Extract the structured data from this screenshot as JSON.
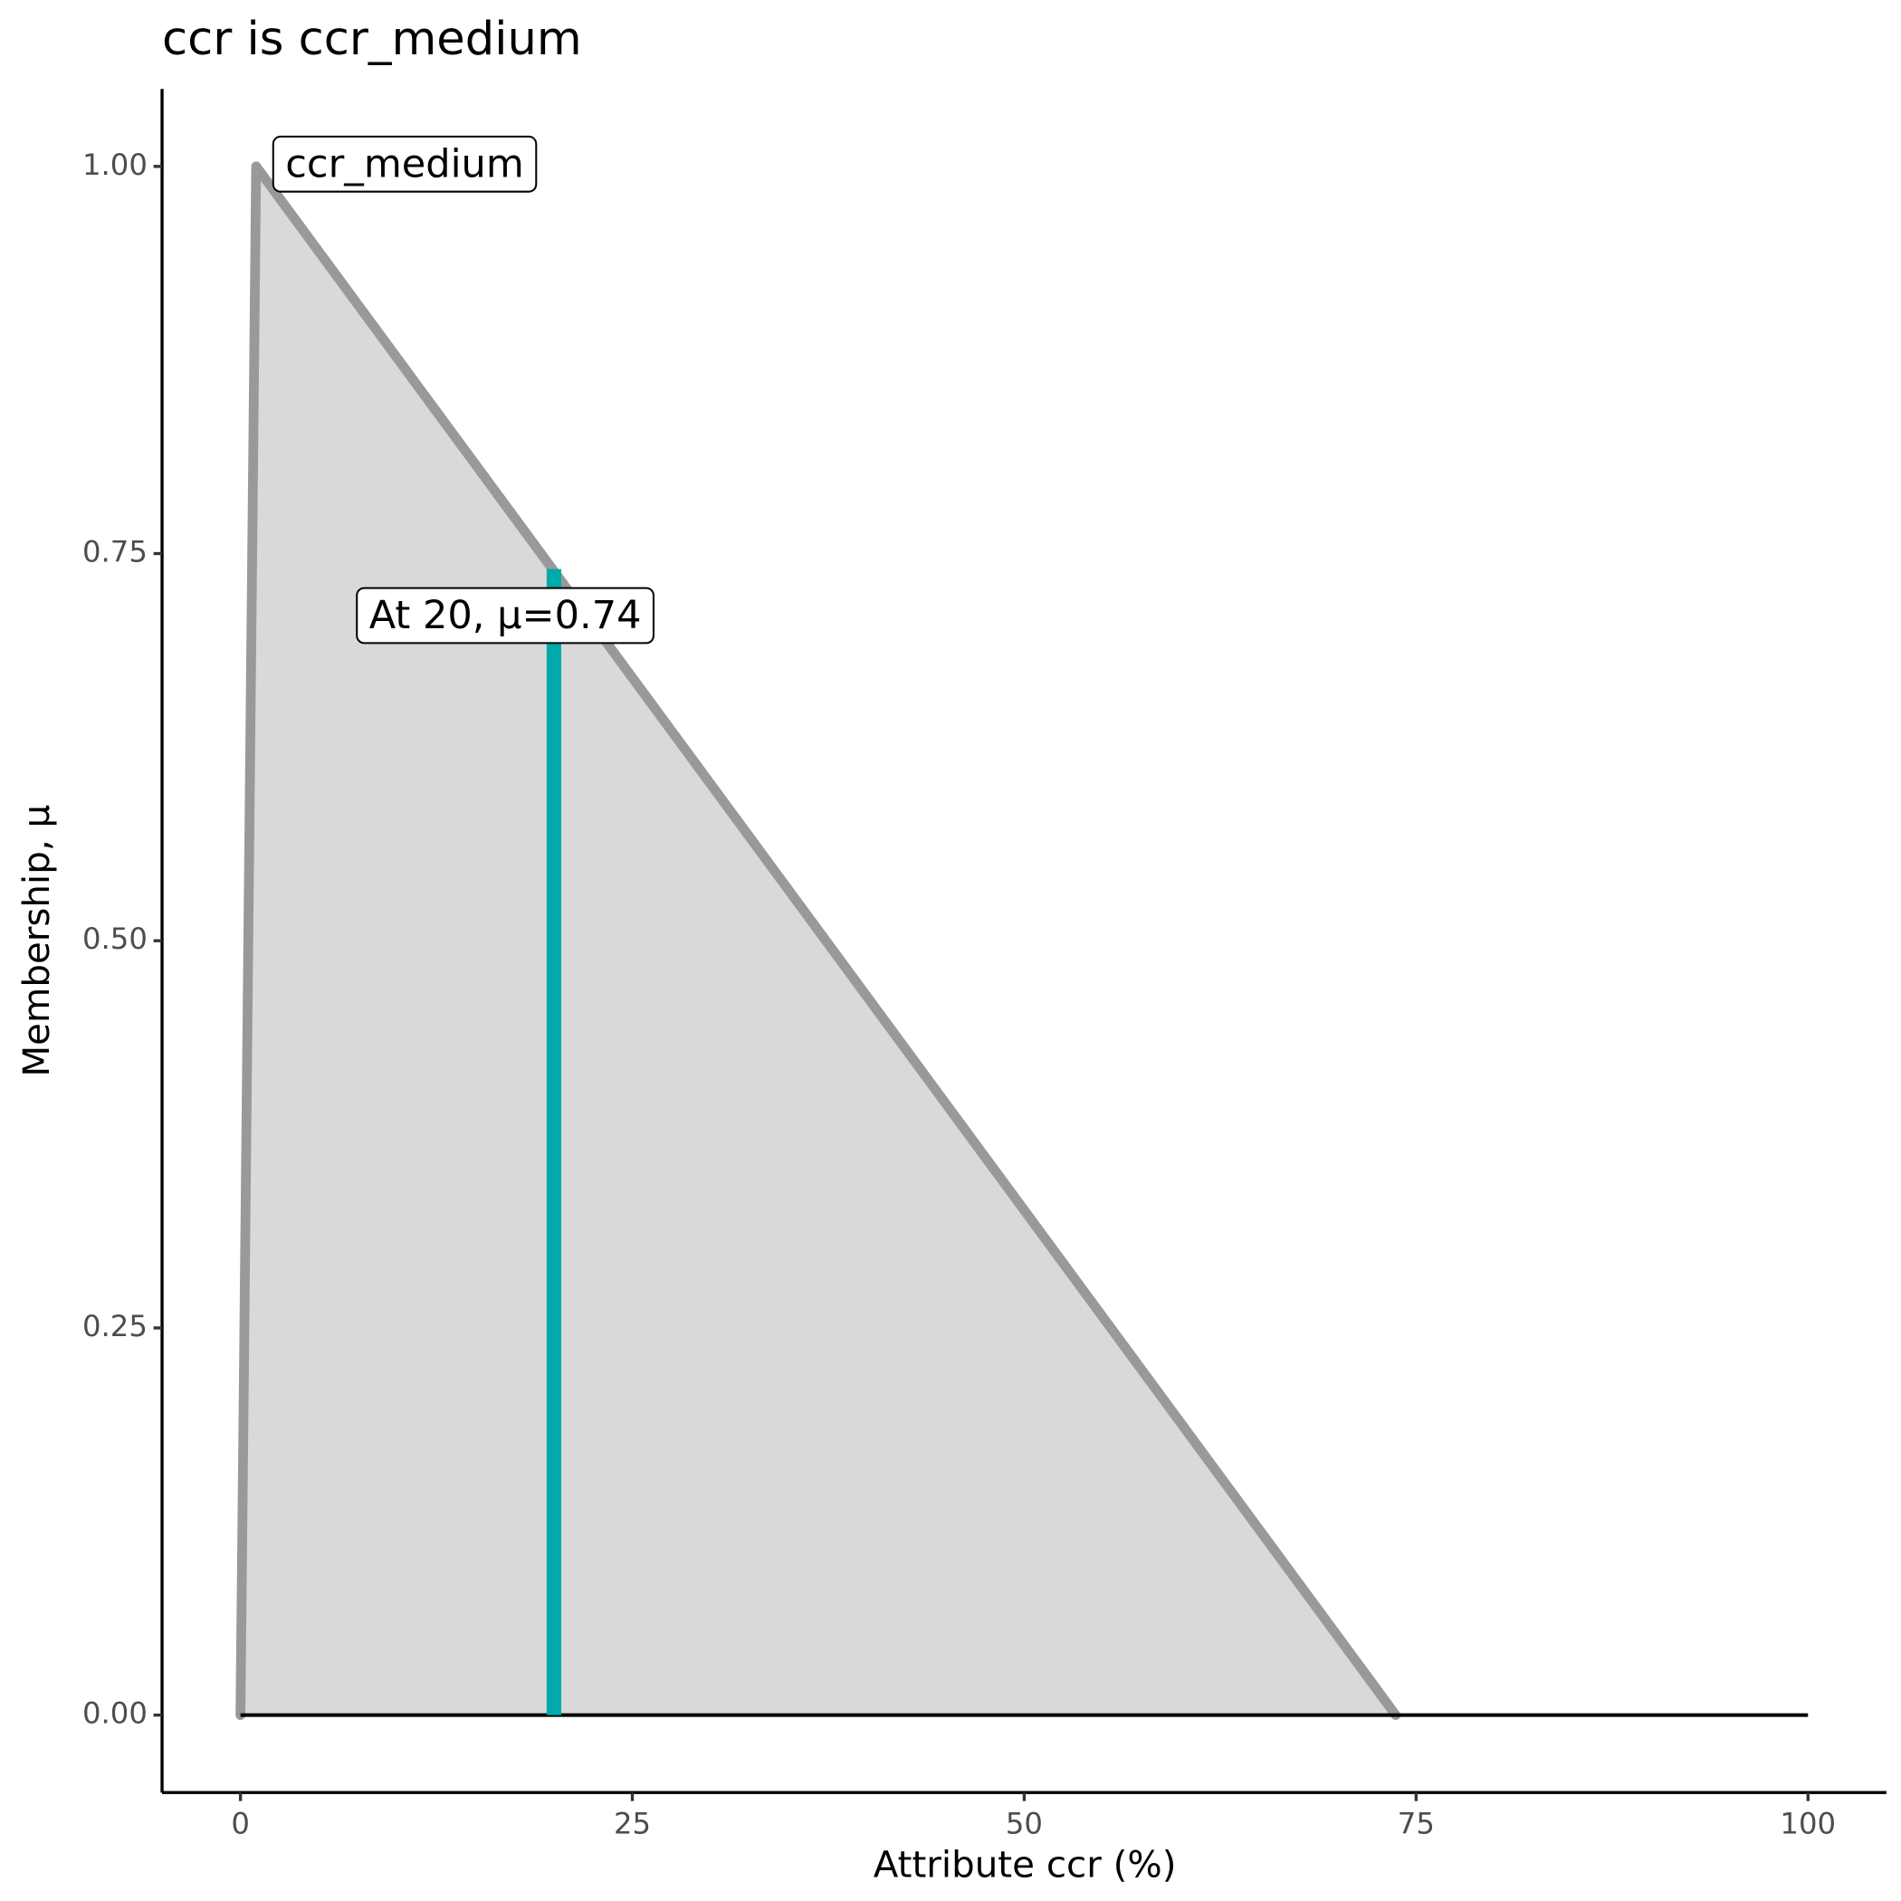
{
  "chart_data": {
    "type": "line",
    "title": "ccr is ccr_medium",
    "xlabel": "Attribute ccr (%)",
    "ylabel": "Membership, μ",
    "xlim": [
      -5,
      105
    ],
    "ylim": [
      -0.05,
      1.05
    ],
    "xticks": [
      0,
      25,
      50,
      75,
      100
    ],
    "yticks": [
      {
        "value": 0,
        "label": "0.00"
      },
      {
        "value": 0.25,
        "label": "0.25"
      },
      {
        "value": 0.5,
        "label": "0.50"
      },
      {
        "value": 0.75,
        "label": "0.75"
      },
      {
        "value": 1,
        "label": "1.00"
      }
    ],
    "series": [
      {
        "name": "ccr_medium",
        "color": "#999999",
        "fill": "#d9d9d9",
        "x": [
          0,
          1,
          73.7
        ],
        "values": [
          0,
          1,
          0
        ]
      }
    ],
    "baseline": {
      "x": [
        0,
        100
      ],
      "values": [
        0,
        0
      ],
      "color": "#000000"
    },
    "marker": {
      "x": 20,
      "value": 0.74,
      "color": "#00aaaa",
      "label": "At 20, μ=0.74"
    }
  }
}
